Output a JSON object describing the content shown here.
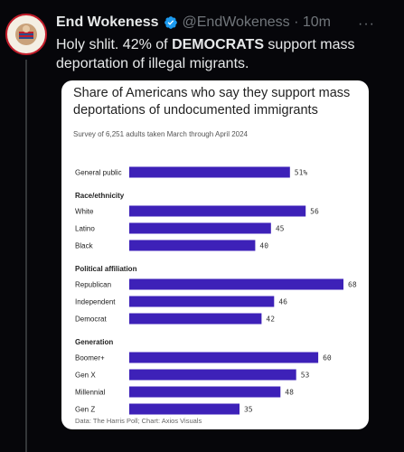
{
  "tweet": {
    "author_name": "End Wokeness",
    "handle_time": "@EndWokeness · 10m",
    "text_before": "Holy shlit. 42% of ",
    "text_bold": "DEMOCRATS",
    "text_after": " support mass deportation of illegal migrants.",
    "more_label": "···",
    "avatar_text": "SUPPORT THE BORDER",
    "icons": [
      "avatar-logo",
      "verified-badge-icon",
      "more-options-icon"
    ]
  },
  "card": {
    "title": "Share of Americans who say they support mass deportations of undocumented immigrants",
    "subtitle": "Survey of 6,251 adults taken March through April 2024",
    "source": "Data: The Harris Poll; Chart: Axios Visuals"
  },
  "chart_data": {
    "type": "bar",
    "orientation": "horizontal",
    "bar_color": "#3d21b8",
    "xlim": [
      0,
      68
    ],
    "groups": [
      {
        "heading": "",
        "items": [
          {
            "label": "General public",
            "value": 51,
            "display": "51%"
          }
        ]
      },
      {
        "heading": "Race/ethnicity",
        "items": [
          {
            "label": "White",
            "value": 56,
            "display": "56"
          },
          {
            "label": "Latino",
            "value": 45,
            "display": "45"
          },
          {
            "label": "Black",
            "value": 40,
            "display": "40"
          }
        ]
      },
      {
        "heading": "Political affiliation",
        "items": [
          {
            "label": "Republican",
            "value": 68,
            "display": "68"
          },
          {
            "label": "Independent",
            "value": 46,
            "display": "46"
          },
          {
            "label": "Democrat",
            "value": 42,
            "display": "42"
          }
        ]
      },
      {
        "heading": "Generation",
        "items": [
          {
            "label": "Boomer+",
            "value": 60,
            "display": "60"
          },
          {
            "label": "Gen X",
            "value": 53,
            "display": "53"
          },
          {
            "label": "Millennial",
            "value": 48,
            "display": "48"
          },
          {
            "label": "Gen Z",
            "value": 35,
            "display": "35"
          }
        ]
      }
    ]
  }
}
